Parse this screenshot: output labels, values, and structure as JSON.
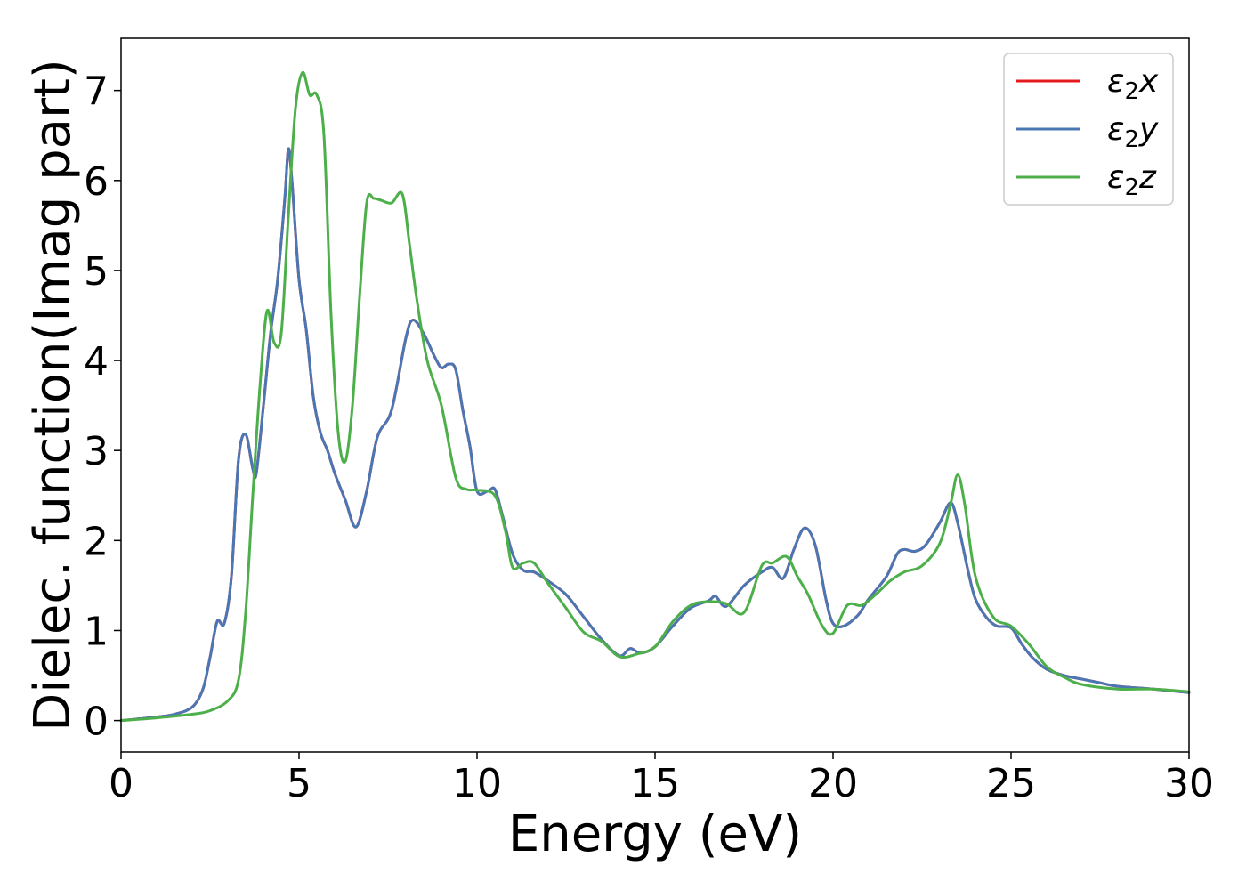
{
  "chart_data": {
    "type": "line",
    "title": "",
    "xlabel": "Energy (eV)",
    "ylabel": "Dielec. function(Imag part)",
    "xlim": [
      0,
      30
    ],
    "ylim": [
      -0.35,
      7.58
    ],
    "xticks": [
      0,
      5,
      10,
      15,
      20,
      25,
      30
    ],
    "yticks": [
      0,
      1,
      2,
      3,
      4,
      5,
      6,
      7
    ],
    "grid": false,
    "legend_position": "top-right",
    "series": [
      {
        "name": "ε2x",
        "legend_base": "ε",
        "legend_sub": "2",
        "legend_tail": "x",
        "color": "#e41a1c",
        "x": [
          0,
          1,
          1.5,
          2,
          2.3,
          2.5,
          2.7,
          2.9,
          3.1,
          3.3,
          3.5,
          3.7,
          3.8,
          4,
          4.2,
          4.4,
          4.6,
          4.7,
          4.8,
          5,
          5.2,
          5.4,
          5.6,
          5.8,
          6,
          6.3,
          6.6,
          6.9,
          7.2,
          7.6,
          8,
          8.2,
          8.5,
          8.8,
          9,
          9.2,
          9.4,
          9.6,
          9.8,
          10,
          10.3,
          10.5,
          10.7,
          11,
          11.3,
          11.6,
          12,
          12.5,
          13,
          13.5,
          14,
          14.3,
          14.6,
          15,
          15.5,
          16,
          16.5,
          16.7,
          17,
          17.5,
          18,
          18.3,
          18.6,
          18.9,
          19.2,
          19.5,
          19.8,
          20,
          20.3,
          20.7,
          21,
          21.5,
          21.8,
          22,
          22.3,
          22.6,
          23,
          23.3,
          23.5,
          23.8,
          24,
          24.3,
          24.6,
          25,
          25.3,
          25.6,
          26,
          26.5,
          27,
          27.5,
          28,
          29,
          30
        ],
        "y": [
          0.0,
          0.04,
          0.07,
          0.15,
          0.35,
          0.7,
          1.1,
          1.08,
          1.6,
          2.9,
          3.18,
          2.8,
          2.75,
          3.5,
          4.3,
          4.9,
          5.8,
          6.35,
          6.0,
          4.9,
          4.35,
          3.6,
          3.2,
          3.0,
          2.75,
          2.45,
          2.15,
          2.55,
          3.15,
          3.45,
          4.25,
          4.45,
          4.3,
          4.05,
          3.92,
          3.96,
          3.9,
          3.45,
          3.05,
          2.55,
          2.55,
          2.57,
          2.3,
          1.85,
          1.67,
          1.65,
          1.55,
          1.4,
          1.15,
          0.9,
          0.72,
          0.8,
          0.75,
          0.82,
          1.05,
          1.25,
          1.33,
          1.38,
          1.27,
          1.5,
          1.65,
          1.7,
          1.58,
          1.9,
          2.14,
          1.95,
          1.35,
          1.08,
          1.05,
          1.17,
          1.35,
          1.6,
          1.85,
          1.9,
          1.88,
          1.95,
          2.2,
          2.42,
          2.2,
          1.65,
          1.35,
          1.15,
          1.05,
          1.03,
          0.85,
          0.7,
          0.57,
          0.5,
          0.46,
          0.42,
          0.38,
          0.35,
          0.31
        ]
      },
      {
        "name": "ε2y",
        "legend_base": "ε",
        "legend_sub": "2",
        "legend_tail": "y",
        "color": "#4a77b4",
        "x": [
          0,
          1,
          1.5,
          2,
          2.3,
          2.5,
          2.7,
          2.9,
          3.1,
          3.3,
          3.5,
          3.7,
          3.8,
          4,
          4.2,
          4.4,
          4.6,
          4.7,
          4.8,
          5,
          5.2,
          5.4,
          5.6,
          5.8,
          6,
          6.3,
          6.6,
          6.9,
          7.2,
          7.6,
          8,
          8.2,
          8.5,
          8.8,
          9,
          9.2,
          9.4,
          9.6,
          9.8,
          10,
          10.3,
          10.5,
          10.7,
          11,
          11.3,
          11.6,
          12,
          12.5,
          13,
          13.5,
          14,
          14.3,
          14.6,
          15,
          15.5,
          16,
          16.5,
          16.7,
          17,
          17.5,
          18,
          18.3,
          18.6,
          18.9,
          19.2,
          19.5,
          19.8,
          20,
          20.3,
          20.7,
          21,
          21.5,
          21.8,
          22,
          22.3,
          22.6,
          23,
          23.3,
          23.5,
          23.8,
          24,
          24.3,
          24.6,
          25,
          25.3,
          25.6,
          26,
          26.5,
          27,
          27.5,
          28,
          29,
          30
        ],
        "y": [
          0.0,
          0.04,
          0.07,
          0.15,
          0.35,
          0.7,
          1.1,
          1.08,
          1.6,
          2.9,
          3.18,
          2.8,
          2.75,
          3.5,
          4.3,
          4.9,
          5.8,
          6.35,
          6.0,
          4.9,
          4.35,
          3.6,
          3.2,
          3.0,
          2.75,
          2.45,
          2.15,
          2.55,
          3.15,
          3.45,
          4.25,
          4.45,
          4.3,
          4.05,
          3.92,
          3.96,
          3.9,
          3.45,
          3.05,
          2.55,
          2.55,
          2.57,
          2.3,
          1.85,
          1.67,
          1.65,
          1.55,
          1.4,
          1.15,
          0.9,
          0.72,
          0.8,
          0.75,
          0.82,
          1.05,
          1.25,
          1.33,
          1.38,
          1.27,
          1.5,
          1.65,
          1.7,
          1.58,
          1.9,
          2.14,
          1.95,
          1.35,
          1.08,
          1.05,
          1.17,
          1.35,
          1.6,
          1.85,
          1.9,
          1.88,
          1.95,
          2.2,
          2.42,
          2.2,
          1.65,
          1.35,
          1.15,
          1.05,
          1.03,
          0.85,
          0.7,
          0.57,
          0.5,
          0.46,
          0.42,
          0.38,
          0.35,
          0.31
        ]
      },
      {
        "name": "ε2z",
        "legend_base": "ε",
        "legend_sub": "2",
        "legend_tail": "z",
        "color": "#4daf4a",
        "x": [
          0,
          1,
          2,
          2.5,
          3,
          3.3,
          3.5,
          3.7,
          3.9,
          4.1,
          4.3,
          4.5,
          4.7,
          4.9,
          5.1,
          5.3,
          5.5,
          5.7,
          5.9,
          6.1,
          6.3,
          6.5,
          6.7,
          6.9,
          7.1,
          7.3,
          7.6,
          7.9,
          8.1,
          8.3,
          8.6,
          9,
          9.4,
          9.7,
          10,
          10.5,
          10.8,
          11,
          11.3,
          11.6,
          12,
          12.5,
          13,
          13.5,
          14,
          14.5,
          15,
          15.5,
          16,
          16.5,
          17,
          17.5,
          18,
          18.3,
          18.7,
          19,
          19.3,
          19.7,
          20,
          20.4,
          20.8,
          21.2,
          21.6,
          22,
          22.5,
          23,
          23.3,
          23.5,
          23.7,
          24,
          24.5,
          25,
          25.5,
          26,
          26.5,
          27,
          28,
          29,
          30
        ],
        "y": [
          0.0,
          0.03,
          0.07,
          0.11,
          0.22,
          0.45,
          1.2,
          2.5,
          3.7,
          4.55,
          4.2,
          4.3,
          5.6,
          6.8,
          7.2,
          6.95,
          6.95,
          6.5,
          4.5,
          3.2,
          2.88,
          3.5,
          4.7,
          5.75,
          5.8,
          5.78,
          5.75,
          5.85,
          5.3,
          4.7,
          4.0,
          3.5,
          2.7,
          2.57,
          2.56,
          2.5,
          2.1,
          1.7,
          1.75,
          1.75,
          1.52,
          1.25,
          0.98,
          0.88,
          0.71,
          0.74,
          0.82,
          1.1,
          1.28,
          1.32,
          1.3,
          1.2,
          1.72,
          1.75,
          1.82,
          1.6,
          1.4,
          1.05,
          0.97,
          1.28,
          1.28,
          1.4,
          1.55,
          1.65,
          1.72,
          1.97,
          2.4,
          2.73,
          2.4,
          1.6,
          1.15,
          1.05,
          0.85,
          0.6,
          0.48,
          0.4,
          0.35,
          0.35,
          0.32
        ]
      }
    ]
  }
}
